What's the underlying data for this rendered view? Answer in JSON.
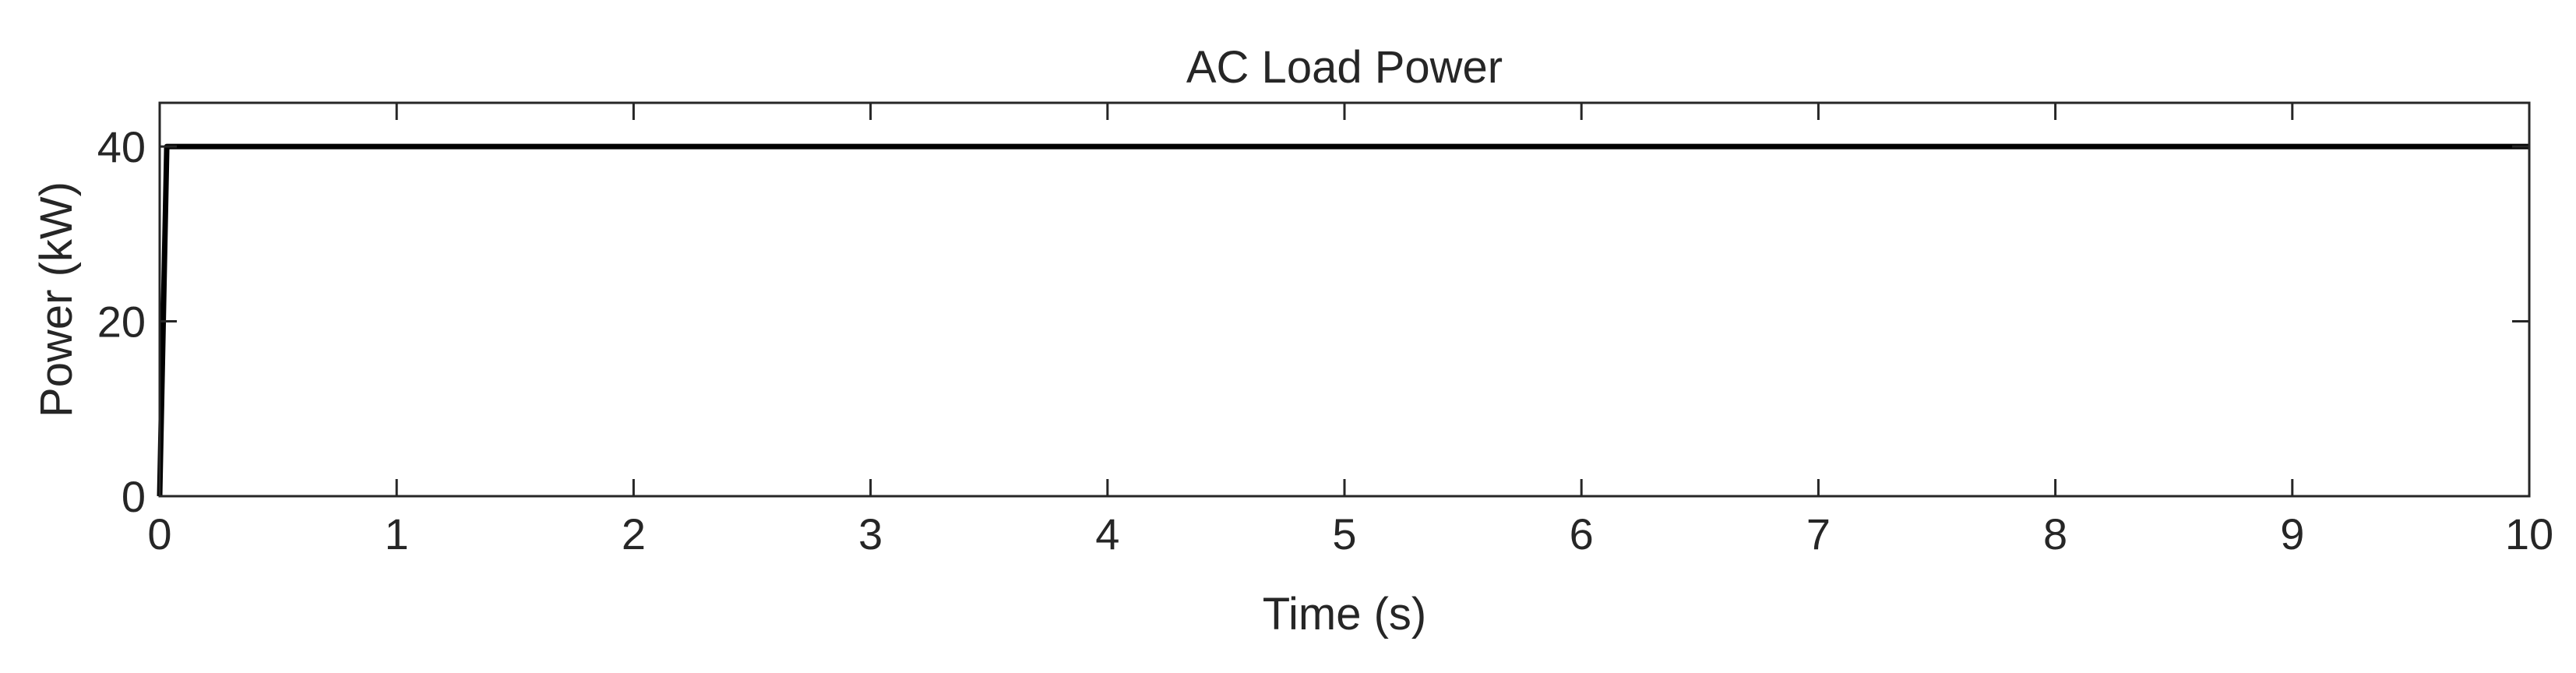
{
  "chart_data": {
    "type": "line",
    "title": "AC Load Power",
    "xlabel": "Time (s)",
    "ylabel": "Power (kW)",
    "xlim": [
      0,
      10
    ],
    "ylim": [
      0,
      45
    ],
    "xticks": [
      0,
      1,
      2,
      3,
      4,
      5,
      6,
      7,
      8,
      9,
      10
    ],
    "xtick_labels": [
      "0",
      "1",
      "2",
      "3",
      "4",
      "5",
      "6",
      "7",
      "8",
      "9",
      "10"
    ],
    "yticks": [
      0,
      20,
      40
    ],
    "ytick_labels": [
      "0",
      "20",
      "40"
    ],
    "grid": false,
    "legend": "none",
    "series": [
      {
        "color": "#000000",
        "x": [
          0,
          0.03,
          0.05,
          10
        ],
        "y": [
          0,
          40,
          40,
          40
        ]
      }
    ]
  }
}
